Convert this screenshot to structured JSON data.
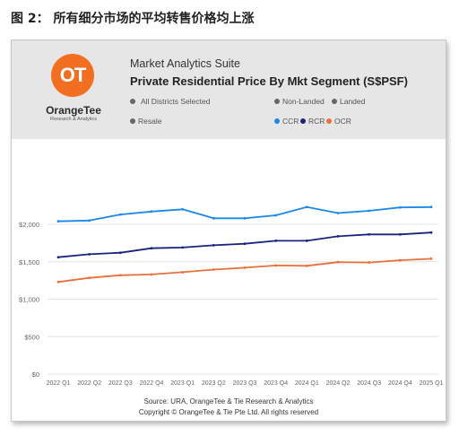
{
  "figure_title": "图 2： 所有细分市场的平均转售价格均上涨",
  "header": {
    "logo_mark": "OT",
    "logo_name": "OrangeTee",
    "logo_sub": "Research & Analytics",
    "suite": "Market Analytics Suite",
    "title": "Private Residential Price By Mkt Segment (S$PSF)"
  },
  "filters": {
    "districts": "All Districts Selected",
    "non_landed": "Non-Landed",
    "landed": "Landed",
    "resale": "Resale"
  },
  "colors": {
    "CCR": "#1e88e5",
    "RCR": "#1a237e",
    "OCR": "#e8703a",
    "grid": "#e3e3e3",
    "filter_dot": "#666666"
  },
  "footer": {
    "source": "Source: URA, OrangeTee & Tie Research & Analytics",
    "copyright": "Copyright © OrangeTee & Tie Pte Ltd. All rights reserved"
  },
  "chart_data": {
    "type": "line",
    "categories": [
      "2022 Q1",
      "2022 Q2",
      "2022 Q3",
      "2022 Q4",
      "2023 Q1",
      "2023 Q2",
      "2023 Q3",
      "2023 Q4",
      "2024 Q1",
      "2024 Q2",
      "2024 Q3",
      "2024 Q4",
      "2025 Q1"
    ],
    "series": [
      {
        "name": "CCR",
        "values": [
          2040,
          2050,
          2130,
          2170,
          2200,
          2080,
          2080,
          2120,
          2230,
          2150,
          2180,
          2225,
          2230
        ]
      },
      {
        "name": "RCR",
        "values": [
          1560,
          1600,
          1620,
          1680,
          1690,
          1720,
          1740,
          1780,
          1780,
          1840,
          1865,
          1865,
          1890
        ]
      },
      {
        "name": "OCR",
        "values": [
          1230,
          1285,
          1320,
          1330,
          1360,
          1395,
          1420,
          1450,
          1445,
          1495,
          1490,
          1520,
          1540
        ]
      }
    ],
    "y_ticks": [
      "$0",
      "$500",
      "$1,000",
      "$1,500",
      "$2,000"
    ],
    "y_tick_values": [
      0,
      500,
      1000,
      1500,
      2000
    ],
    "ylim": [
      0,
      2000
    ],
    "grid": true,
    "legend_position": "top-right"
  }
}
